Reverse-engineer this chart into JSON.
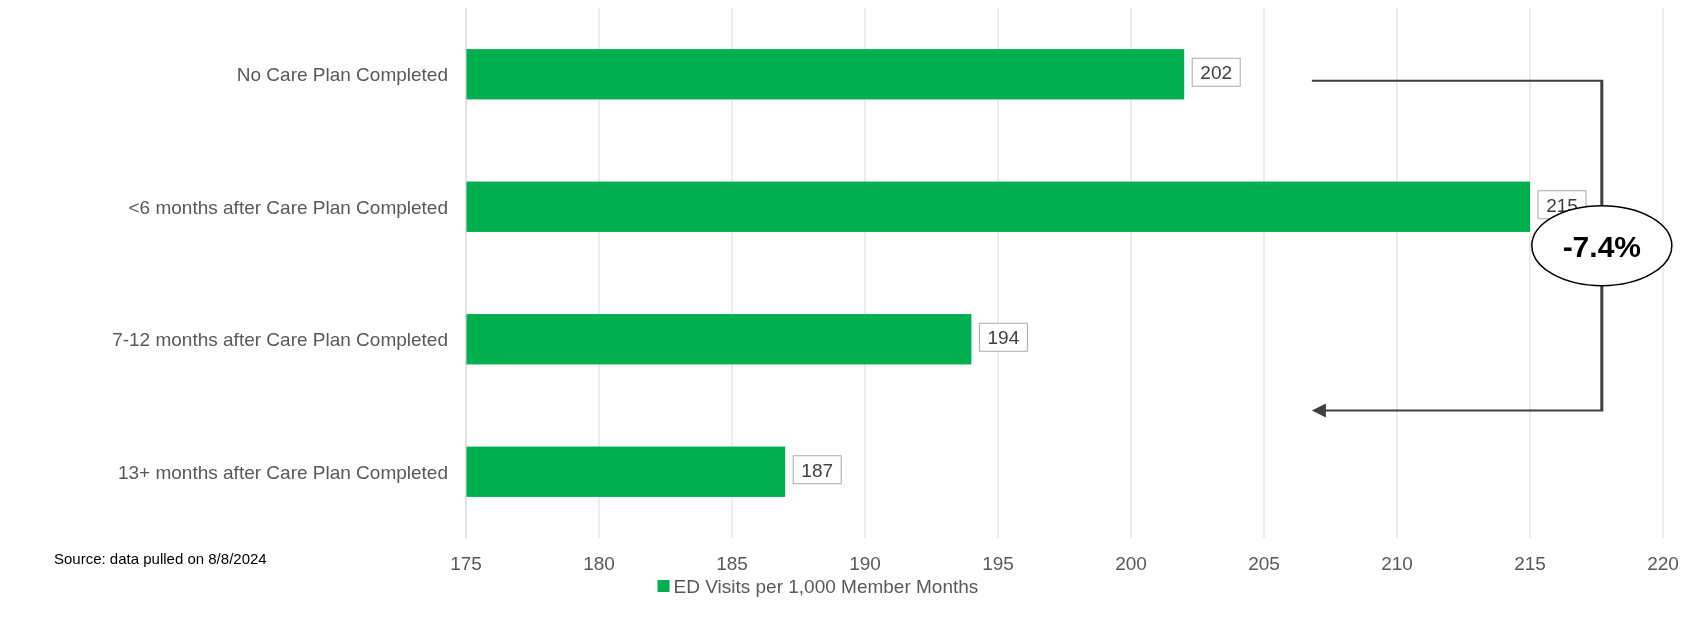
{
  "chart_data": {
    "type": "bar",
    "orientation": "horizontal",
    "categories": [
      "No Care Plan Completed",
      "<6 months after Care Plan Completed",
      "7-12 months after Care Plan Completed",
      "13+ months after Care Plan Completed"
    ],
    "series": [
      {
        "name": "ED Visits per 1,000 Member Months",
        "color": "#00b050",
        "values": [
          202,
          215,
          194,
          187
        ]
      }
    ],
    "xlim": [
      175,
      220
    ],
    "xticks": [
      175,
      180,
      185,
      190,
      195,
      200,
      205,
      210,
      215,
      220
    ],
    "grid": "x",
    "legend": "bottom",
    "data_labels": true,
    "annotations": [
      "-7.4%",
      "Source: data pulled on 8/8/2024"
    ]
  }
}
